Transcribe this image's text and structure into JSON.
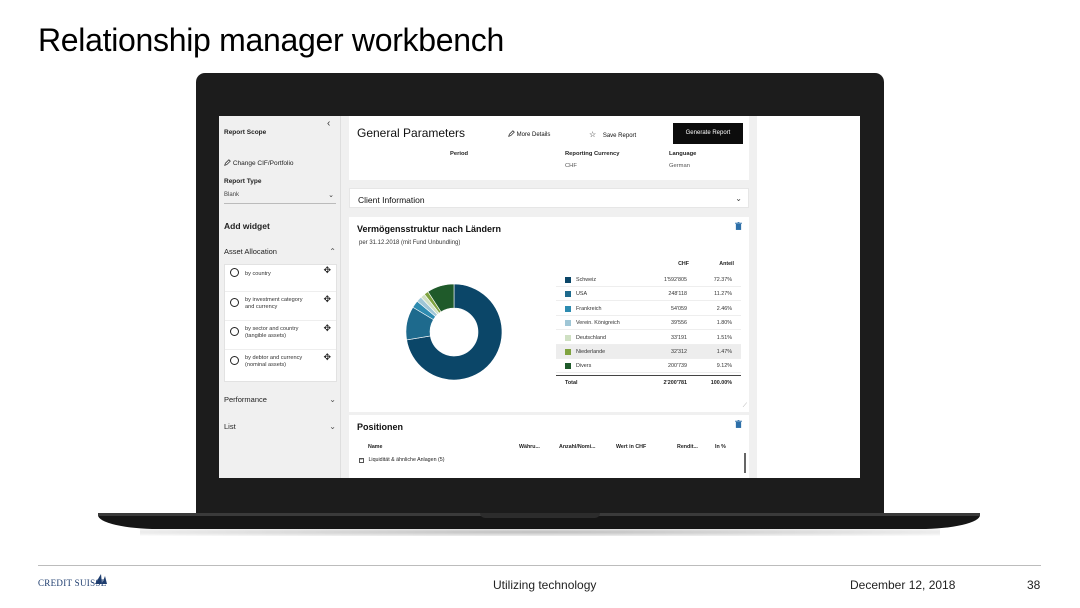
{
  "slide": {
    "title": "Relationship manager workbench",
    "footer_center": "Utilizing technology",
    "footer_date": "December 12, 2018",
    "page_number": "38",
    "logo_text": "CREDIT SUISSE"
  },
  "sidebar": {
    "collapse_icon": "chevron-left-icon",
    "report_scope": "Report Scope",
    "change_link": "Change CIF/Portfolio",
    "report_type_label": "Report Type",
    "report_type_value": "Blank",
    "add_widget": "Add widget",
    "asset_allocation": "Asset Allocation",
    "widgets": [
      {
        "label": "by country"
      },
      {
        "label": "by investment category and currency"
      },
      {
        "label": "by sector and country (tangible assets)"
      },
      {
        "label": "by debtor and currency (nominal assets)"
      }
    ],
    "performance": "Performance",
    "list": "List"
  },
  "general_parameters": {
    "title": "General Parameters",
    "more_details": "More Details",
    "save_report": "Save Report",
    "generate_report": "Generate Report",
    "period_label": "Period",
    "currency_label": "Reporting Currency",
    "currency_value": "CHF",
    "language_label": "Language",
    "language_value": "German"
  },
  "client_information": {
    "title": "Client Information"
  },
  "vermoegen": {
    "title": "Vermögensstruktur nach Ländern",
    "subtitle": "per 31.12.2018 (mit Fund Unbundling)",
    "col_chf": "CHF",
    "col_anteil": "Anteil",
    "rows": [
      {
        "name": "Schweiz",
        "chf": "1'592'805",
        "anteil": "72.37%",
        "color": "#0b4668"
      },
      {
        "name": "USA",
        "chf": "248'118",
        "anteil": "11.27%",
        "color": "#1e6a8d"
      },
      {
        "name": "Frankreich",
        "chf": "54'059",
        "anteil": "2.46%",
        "color": "#2d8bb0"
      },
      {
        "name": "Verein. Königreich",
        "chf": "39'556",
        "anteil": "1.80%",
        "color": "#9fc6d6"
      },
      {
        "name": "Deutschland",
        "chf": "33'191",
        "anteil": "1.51%",
        "color": "#cfe0c3"
      },
      {
        "name": "Niederlande",
        "chf": "32'312",
        "anteil": "1.47%",
        "color": "#7fa33f"
      },
      {
        "name": "Divers",
        "chf": "200'739",
        "anteil": "9.12%",
        "color": "#1f5a2a"
      }
    ],
    "total_label": "Total",
    "total_chf": "2'200'781",
    "total_anteil": "100.00%"
  },
  "chart_data": {
    "type": "pie",
    "categories": [
      "Schweiz",
      "USA",
      "Frankreich",
      "Verein. Königreich",
      "Deutschland",
      "Niederlande",
      "Divers"
    ],
    "values": [
      72.37,
      11.27,
      2.46,
      1.8,
      1.51,
      1.47,
      9.12
    ],
    "title": "Vermögensstruktur nach Ländern",
    "legend": "right"
  },
  "positionen": {
    "title": "Positionen",
    "columns": [
      "Name",
      "Währu...",
      "Anzahl/Nomi...",
      "Wert in CHF",
      "Rendit...",
      "In %"
    ],
    "group_row": "Liquidität & ähnliche Anlagen (5)"
  }
}
